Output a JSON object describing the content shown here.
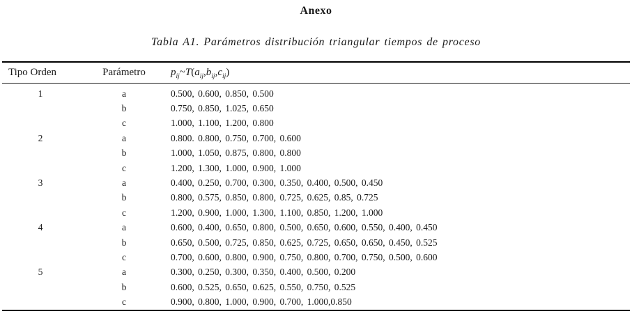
{
  "document": {
    "title": "Anexo",
    "table_caption": "Tabla A1. Parámetros distribución triangular tiempos de proceso"
  },
  "table": {
    "columns": {
      "tipo_orden": "Tipo Orden",
      "parametro": "Parámetro"
    },
    "formula_segments": [
      {
        "t": "p",
        "sub": "ij",
        "i": true
      },
      {
        "t": "~",
        "i": false
      },
      {
        "t": "T",
        "i": true
      },
      {
        "t": "(",
        "i": false
      },
      {
        "t": "a",
        "sub": "ij",
        "i": true
      },
      {
        "t": ",",
        "i": false
      },
      {
        "t": "b",
        "sub": "ij",
        "i": true
      },
      {
        "t": ",",
        "i": false
      },
      {
        "t": "c",
        "sub": "ij",
        "i": true
      },
      {
        "t": ")",
        "i": false
      }
    ],
    "groups": [
      {
        "tipo": "1",
        "params": [
          {
            "name": "a",
            "values": "0.500, 0.600, 0.850, 0.500"
          },
          {
            "name": "b",
            "values": "0.750, 0.850, 1.025, 0.650"
          },
          {
            "name": "c",
            "values": "1.000, 1.100, 1.200, 0.800"
          }
        ]
      },
      {
        "tipo": "2",
        "params": [
          {
            "name": "a",
            "values": "0.800. 0.800, 0.750, 0.700, 0.600"
          },
          {
            "name": "b",
            "values": "1.000, 1.050, 0.875, 0.800, 0.800"
          },
          {
            "name": "c",
            "values": "1.200, 1.300, 1.000, 0.900, 1.000"
          }
        ]
      },
      {
        "tipo": "3",
        "params": [
          {
            "name": "a",
            "values": "0.400, 0.250, 0.700, 0.300, 0.350, 0.400, 0.500, 0.450"
          },
          {
            "name": "b",
            "values": "0.800, 0.575, 0.850, 0.800, 0.725, 0.625, 0.85, 0.725"
          },
          {
            "name": "c",
            "values": "1.200, 0.900, 1.000, 1.300, 1.100, 0.850, 1.200, 1.000"
          }
        ]
      },
      {
        "tipo": "4",
        "params": [
          {
            "name": "a",
            "values": "0.600, 0.400, 0.650, 0.800, 0.500, 0.650, 0.600, 0.550, 0.400, 0.450"
          },
          {
            "name": "b",
            "values": "0.650, 0.500, 0.725, 0.850, 0.625, 0.725, 0.650, 0.650, 0.450, 0.525"
          },
          {
            "name": "c",
            "values": "0.700, 0.600, 0.800, 0.900, 0.750, 0.800, 0.700, 0.750, 0.500, 0.600"
          }
        ]
      },
      {
        "tipo": "5",
        "params": [
          {
            "name": "a",
            "values": "0.300, 0.250, 0.300, 0.350, 0.400, 0.500, 0.200"
          },
          {
            "name": "b",
            "values": "0.600, 0.525, 0.650, 0.625, 0.550, 0.750, 0.525"
          },
          {
            "name": "c",
            "values": "0.900, 0.800, 1.000, 0.900, 0.700, 1.000,0.850"
          }
        ]
      }
    ]
  }
}
